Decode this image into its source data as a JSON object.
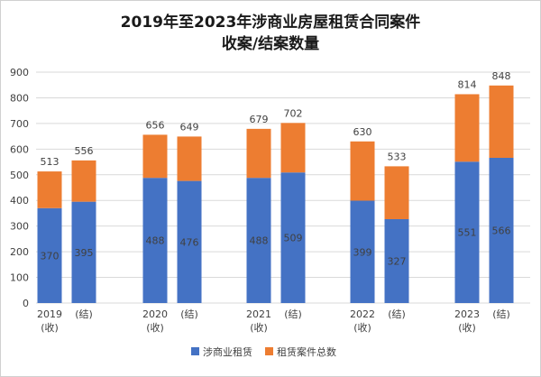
{
  "chart_data": {
    "type": "bar",
    "stacked": true,
    "title_lines": [
      "2019年至2023年涉商业房屋租赁合同案件",
      "收案/结案数量"
    ],
    "categories": [
      [
        "2019",
        "(收)"
      ],
      [
        "",
        "(结)"
      ],
      [
        "2020",
        "(收)"
      ],
      [
        "",
        "(结)"
      ],
      [
        "2021",
        "(收)"
      ],
      [
        "",
        "(结)"
      ],
      [
        "2022",
        "(收)"
      ],
      [
        "",
        "(结)"
      ],
      [
        "2023",
        "(收)"
      ],
      [
        "",
        "(结)"
      ]
    ],
    "series": [
      {
        "name": "涉商业租赁",
        "color": "#4472c4",
        "values": [
          370,
          395,
          488,
          476,
          488,
          509,
          399,
          327,
          551,
          566
        ]
      },
      {
        "name": "租赁案件总数",
        "color": "#ed7d31",
        "values": [
          143,
          161,
          168,
          173,
          191,
          193,
          231,
          206,
          263,
          282
        ]
      }
    ],
    "totals": [
      513,
      556,
      656,
      649,
      679,
      702,
      630,
      533,
      814,
      848
    ],
    "ylim": [
      0,
      900
    ],
    "yticks": [
      0,
      100,
      200,
      300,
      400,
      500,
      600,
      700,
      800,
      900
    ],
    "grid": true,
    "legend_position": "bottom"
  }
}
